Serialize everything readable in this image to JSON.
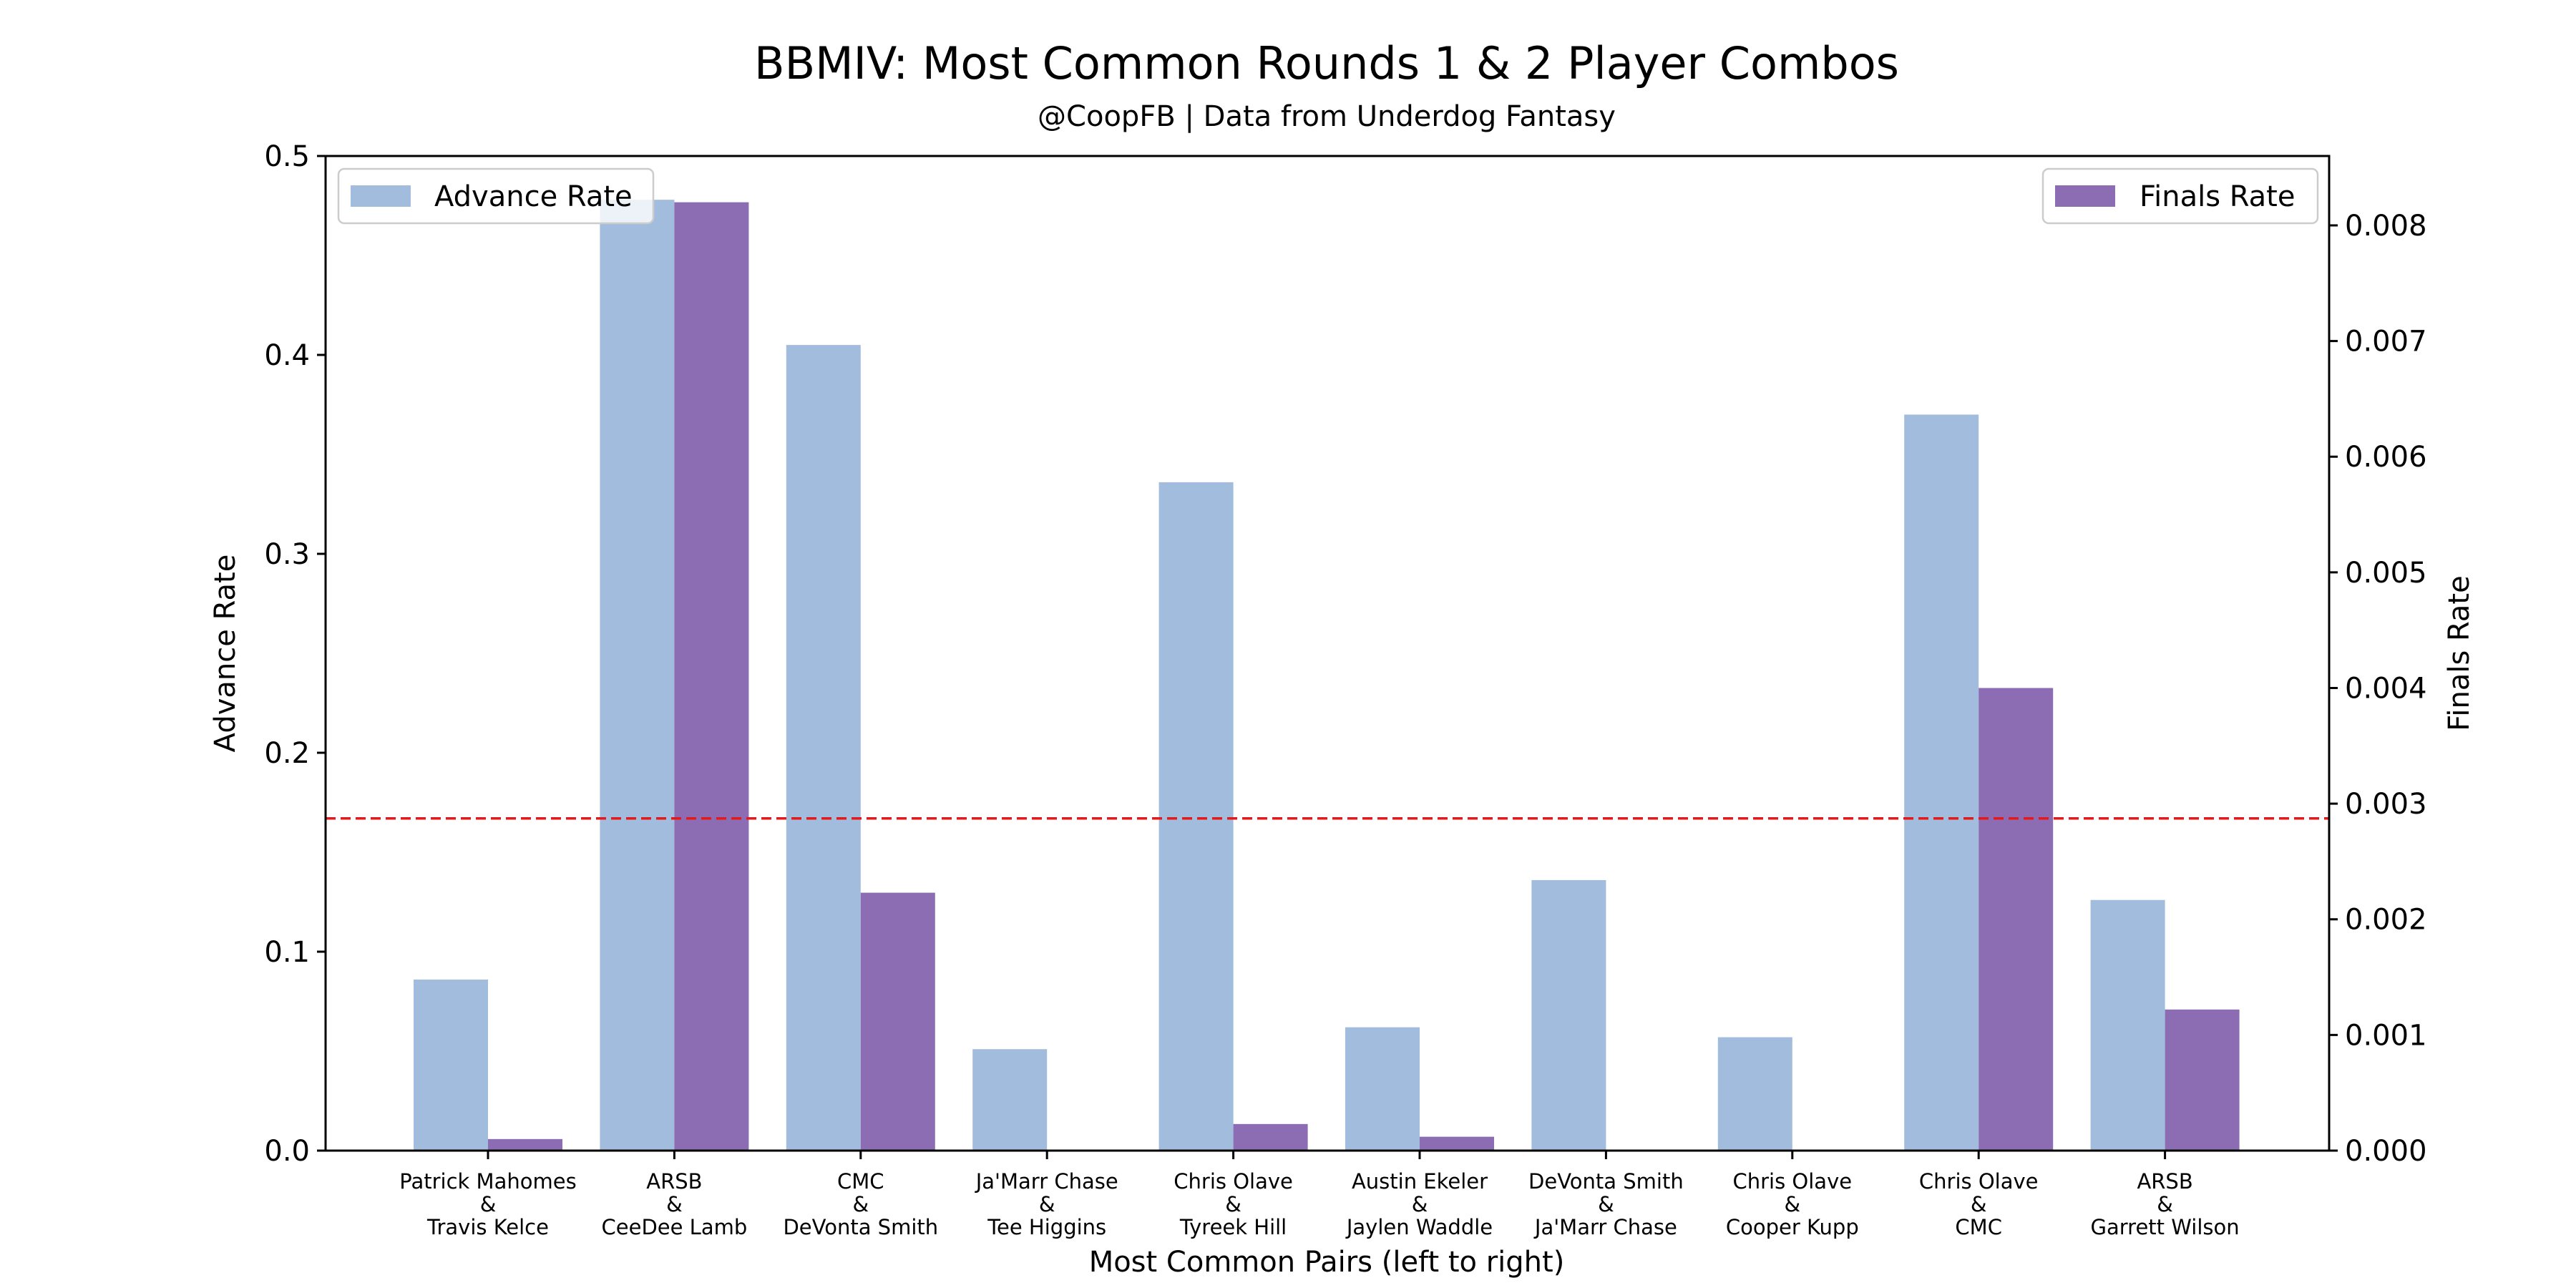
{
  "chart_data": {
    "type": "bar",
    "title": "BBMIV: Most Common Rounds 1 & 2 Player Combos",
    "subtitle": "@CoopFB | Data from Underdog Fantasy",
    "xlabel": "Most Common Pairs (left to right)",
    "ylabel": "Advance Rate",
    "y2label": "Finals Rate",
    "ylim": [
      0,
      0.5
    ],
    "y2lim": [
      0,
      0.0086
    ],
    "yticks": [
      "0.0",
      "0.1",
      "0.2",
      "0.3",
      "0.4",
      "0.5"
    ],
    "y2ticks": [
      "0.000",
      "0.001",
      "0.002",
      "0.003",
      "0.004",
      "0.005",
      "0.006",
      "0.007",
      "0.008"
    ],
    "categories": [
      [
        "Patrick Mahomes",
        "&",
        "Travis Kelce"
      ],
      [
        "ARSB",
        "&",
        "CeeDee Lamb"
      ],
      [
        "CMC",
        "&",
        "DeVonta Smith"
      ],
      [
        "Ja'Marr Chase",
        "&",
        "Tee Higgins"
      ],
      [
        "Chris Olave",
        "&",
        "Tyreek Hill"
      ],
      [
        "Austin Ekeler",
        "&",
        "Jaylen Waddle"
      ],
      [
        "DeVonta Smith",
        "&",
        "Ja'Marr Chase"
      ],
      [
        "Chris Olave",
        "&",
        "Cooper Kupp"
      ],
      [
        "Chris Olave",
        "&",
        "CMC"
      ],
      [
        "ARSB",
        "&",
        "Garrett Wilson"
      ]
    ],
    "series": [
      {
        "name": "Advance Rate",
        "axis": "left",
        "color": "#a1bcdc",
        "values": [
          0.086,
          0.478,
          0.405,
          0.051,
          0.336,
          0.062,
          0.136,
          0.057,
          0.37,
          0.126
        ]
      },
      {
        "name": "Finals Rate",
        "axis": "right",
        "color": "#8c6db3",
        "values": [
          0.0001,
          0.0082,
          0.00223,
          0.0,
          0.00023,
          0.00012,
          0.0,
          0.0,
          0.004,
          0.00122
        ]
      }
    ],
    "reference_line": {
      "axis": "left",
      "value": 0.167,
      "color": "#e31a1c",
      "style": "dashed"
    },
    "legend": [
      {
        "series": "Advance Rate",
        "placement": "upper-left"
      },
      {
        "series": "Finals Rate",
        "placement": "upper-right"
      }
    ],
    "grid": false
  }
}
